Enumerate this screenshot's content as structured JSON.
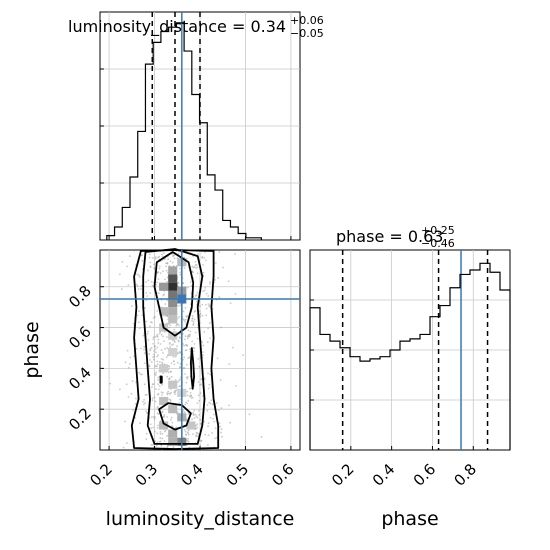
{
  "colors": {
    "truth": "#3b77b3",
    "hist": "#000000",
    "grid": "#c8c8c8",
    "points": "#8a8a8a"
  },
  "chart_data": [
    {
      "type": "histogram",
      "panel": "luminosity_distance marginal",
      "title": {
        "prefix": "luminosity_distance = 0.34",
        "upper": "+0.06",
        "lower": "−0.05"
      },
      "xlim": [
        0.18,
        0.62
      ],
      "xticks": [
        0.2,
        0.3,
        0.4,
        0.5,
        0.6
      ],
      "bin_edges": [
        0.195,
        0.212,
        0.229,
        0.246,
        0.263,
        0.28,
        0.297,
        0.314,
        0.331,
        0.348,
        0.365,
        0.382,
        0.399,
        0.416,
        0.433,
        0.45,
        0.467,
        0.484,
        0.501,
        0.518,
        0.535
      ],
      "counts": [
        2,
        6,
        15,
        29,
        50,
        81,
        91,
        96,
        98,
        100,
        87,
        67,
        54,
        30,
        23,
        9,
        6,
        3,
        1,
        1
      ],
      "ymax": 105,
      "quantiles": [
        0.295,
        0.345,
        0.4
      ],
      "truth": 0.36
    },
    {
      "type": "scatter",
      "panel": "phase vs luminosity_distance",
      "xlabel": "luminosity_distance",
      "ylabel": "phase",
      "xlim": [
        0.18,
        0.62
      ],
      "ylim": [
        0.0,
        0.98
      ],
      "xticks": [
        0.2,
        0.3,
        0.4,
        0.5,
        0.6
      ],
      "yticks": [
        0.2,
        0.4,
        0.6,
        0.8
      ],
      "truth": {
        "x": 0.36,
        "y": 0.74
      },
      "point_sample_count": 900,
      "point_spread": {
        "x_mean": 0.345,
        "x_sd": 0.05,
        "y_min": 0.0,
        "y_max": 0.98
      },
      "density_cells": [
        {
          "x": 0.34,
          "y": 0.8,
          "shade": 0.9
        },
        {
          "x": 0.34,
          "y": 0.84,
          "shade": 0.75
        },
        {
          "x": 0.34,
          "y": 0.76,
          "shade": 0.6
        },
        {
          "x": 0.34,
          "y": 0.72,
          "shade": 0.5
        },
        {
          "x": 0.36,
          "y": 0.78,
          "shade": 0.45
        },
        {
          "x": 0.32,
          "y": 0.8,
          "shade": 0.45
        },
        {
          "x": 0.34,
          "y": 0.88,
          "shade": 0.4
        },
        {
          "x": 0.34,
          "y": 0.68,
          "shade": 0.35
        },
        {
          "x": 0.32,
          "y": 0.68,
          "shade": 0.3
        },
        {
          "x": 0.36,
          "y": 0.92,
          "shade": 0.3
        },
        {
          "x": 0.34,
          "y": 0.64,
          "shade": 0.28
        },
        {
          "x": 0.32,
          "y": 0.6,
          "shade": 0.25
        },
        {
          "x": 0.34,
          "y": 0.56,
          "shade": 0.22
        },
        {
          "x": 0.34,
          "y": 0.48,
          "shade": 0.2
        },
        {
          "x": 0.32,
          "y": 0.4,
          "shade": 0.22
        },
        {
          "x": 0.34,
          "y": 0.32,
          "shade": 0.25
        },
        {
          "x": 0.32,
          "y": 0.24,
          "shade": 0.28
        },
        {
          "x": 0.34,
          "y": 0.2,
          "shade": 0.3
        },
        {
          "x": 0.36,
          "y": 0.16,
          "shade": 0.35
        },
        {
          "x": 0.32,
          "y": 0.12,
          "shade": 0.3
        },
        {
          "x": 0.34,
          "y": 0.08,
          "shade": 0.35
        },
        {
          "x": 0.36,
          "y": 0.04,
          "shade": 0.55
        },
        {
          "x": 0.34,
          "y": 0.04,
          "shade": 0.35
        },
        {
          "x": 0.38,
          "y": 0.12,
          "shade": 0.25
        },
        {
          "x": 0.36,
          "y": 0.28,
          "shade": 0.2
        }
      ],
      "contours": [
        [
          [
            0.305,
            0.92
          ],
          [
            0.34,
            0.97
          ],
          [
            0.375,
            0.92
          ],
          [
            0.385,
            0.82
          ],
          [
            0.382,
            0.7
          ],
          [
            0.37,
            0.6
          ],
          [
            0.345,
            0.56
          ],
          [
            0.32,
            0.6
          ],
          [
            0.31,
            0.7
          ],
          [
            0.3,
            0.8
          ]
        ],
        [
          [
            0.28,
            0.97
          ],
          [
            0.345,
            0.985
          ],
          [
            0.395,
            0.95
          ],
          [
            0.405,
            0.85
          ],
          [
            0.395,
            0.7
          ],
          [
            0.4,
            0.55
          ],
          [
            0.405,
            0.4
          ],
          [
            0.41,
            0.25
          ],
          [
            0.405,
            0.12
          ],
          [
            0.395,
            0.03
          ],
          [
            0.345,
            0.03
          ],
          [
            0.3,
            0.03
          ],
          [
            0.285,
            0.12
          ],
          [
            0.29,
            0.25
          ],
          [
            0.285,
            0.4
          ],
          [
            0.28,
            0.55
          ],
          [
            0.275,
            0.7
          ],
          [
            0.275,
            0.85
          ]
        ],
        [
          [
            0.27,
            0.975
          ],
          [
            0.345,
            0.98
          ],
          [
            0.43,
            0.975
          ],
          [
            0.43,
            0.85
          ],
          [
            0.425,
            0.7
          ],
          [
            0.43,
            0.55
          ],
          [
            0.425,
            0.4
          ],
          [
            0.43,
            0.25
          ],
          [
            0.44,
            0.12
          ],
          [
            0.44,
            0.01
          ],
          [
            0.345,
            0.005
          ],
          [
            0.255,
            0.01
          ],
          [
            0.25,
            0.12
          ],
          [
            0.265,
            0.25
          ],
          [
            0.26,
            0.4
          ],
          [
            0.255,
            0.55
          ],
          [
            0.26,
            0.7
          ],
          [
            0.255,
            0.85
          ]
        ],
        [
          [
            0.31,
            0.2
          ],
          [
            0.33,
            0.23
          ],
          [
            0.36,
            0.22
          ],
          [
            0.38,
            0.18
          ],
          [
            0.37,
            0.12
          ],
          [
            0.345,
            0.1
          ],
          [
            0.32,
            0.13
          ]
        ],
        [
          [
            0.382,
            0.5
          ],
          [
            0.385,
            0.43
          ],
          [
            0.387,
            0.36
          ],
          [
            0.384,
            0.3
          ],
          [
            0.381,
            0.36
          ],
          [
            0.38,
            0.43
          ]
        ],
        [
          [
            0.313,
            0.36
          ],
          [
            0.316,
            0.36
          ],
          [
            0.316,
            0.33
          ],
          [
            0.313,
            0.33
          ]
        ]
      ]
    },
    {
      "type": "histogram",
      "panel": "phase marginal",
      "title": {
        "prefix": "phase = 0.63",
        "upper": "+0.25",
        "lower": "−0.46"
      },
      "xlabel": "phase",
      "xlim": [
        0.0,
        0.98
      ],
      "xticks": [
        0.2,
        0.4,
        0.6,
        0.8
      ],
      "bin_edges": [
        0.0,
        0.049,
        0.098,
        0.147,
        0.196,
        0.245,
        0.294,
        0.343,
        0.392,
        0.441,
        0.49,
        0.539,
        0.588,
        0.637,
        0.686,
        0.735,
        0.784,
        0.833,
        0.882,
        0.931,
        0.98
      ],
      "counts": [
        64,
        52,
        49,
        46,
        42,
        40,
        41,
        42,
        45,
        49,
        50,
        52,
        60,
        65,
        73,
        79,
        81,
        84,
        80,
        72
      ],
      "ymax": 90,
      "quantiles": [
        0.16,
        0.63,
        0.87
      ],
      "truth": 0.74
    }
  ]
}
